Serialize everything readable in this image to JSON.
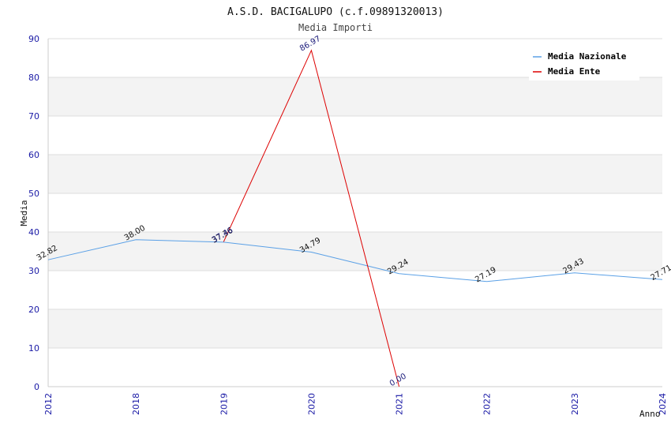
{
  "chart_data": {
    "type": "line",
    "title": "A.S.D. BACIGALUPO (c.f.09891320013)",
    "subtitle": "Media Importi",
    "xlabel": "Anno",
    "ylabel": "Media",
    "categories": [
      "2012",
      "2018",
      "2019",
      "2020",
      "2021",
      "2022",
      "2023",
      "2024"
    ],
    "ylim": [
      0,
      90
    ],
    "yticks": [
      0,
      10,
      20,
      30,
      40,
      50,
      60,
      70,
      80,
      90
    ],
    "grid": true,
    "legend_position": "top-right",
    "series": [
      {
        "name": "Media Nazionale",
        "color": "#5aa0e6",
        "label_color": "#111111",
        "values": [
          32.82,
          38.0,
          37.36,
          34.79,
          29.24,
          27.19,
          29.43,
          27.71
        ],
        "labels": [
          "32.82",
          "38.00",
          "37.36",
          "34.79",
          "29.24",
          "27.19",
          "29.43",
          "27.71"
        ]
      },
      {
        "name": "Media Ente",
        "color": "#dd0000",
        "label_color": "#1a1a7a",
        "values": [
          null,
          null,
          37.46,
          86.97,
          0.0,
          null,
          null,
          null
        ],
        "labels": [
          null,
          null,
          "37.46",
          "86.97",
          "0.00",
          null,
          null,
          null
        ]
      }
    ]
  }
}
